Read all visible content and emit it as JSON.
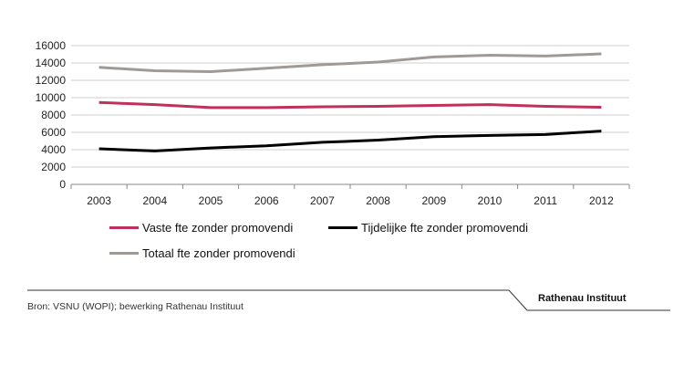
{
  "chart_data": {
    "type": "line",
    "x": [
      "2003",
      "2004",
      "2005",
      "2006",
      "2007",
      "2008",
      "2009",
      "2010",
      "2011",
      "2012"
    ],
    "ylim": [
      0,
      16000
    ],
    "yticks": [
      0,
      2000,
      4000,
      6000,
      8000,
      10000,
      12000,
      14000,
      16000
    ],
    "grid": true,
    "legend_position": "bottom",
    "series": [
      {
        "name": "Vaste fte zonder promovendi",
        "color": "#c0305a",
        "values": [
          9450,
          9200,
          8850,
          8850,
          8950,
          9000,
          9100,
          9200,
          9000,
          8900
        ]
      },
      {
        "name": "Tijdelijke fte zonder promovendi",
        "color": "#000000",
        "values": [
          4100,
          3850,
          4200,
          4450,
          4850,
          5100,
          5500,
          5650,
          5750,
          6150
        ]
      },
      {
        "name": "Totaal fte zonder promovendi",
        "color": "#a09a96",
        "values": [
          13500,
          13100,
          13000,
          13400,
          13800,
          14100,
          14700,
          14900,
          14800,
          15050
        ]
      }
    ]
  },
  "source": "Bron: VSNU (WOPI); bewerking Rathenau Instituut",
  "brand": "Rathenau Instituut"
}
